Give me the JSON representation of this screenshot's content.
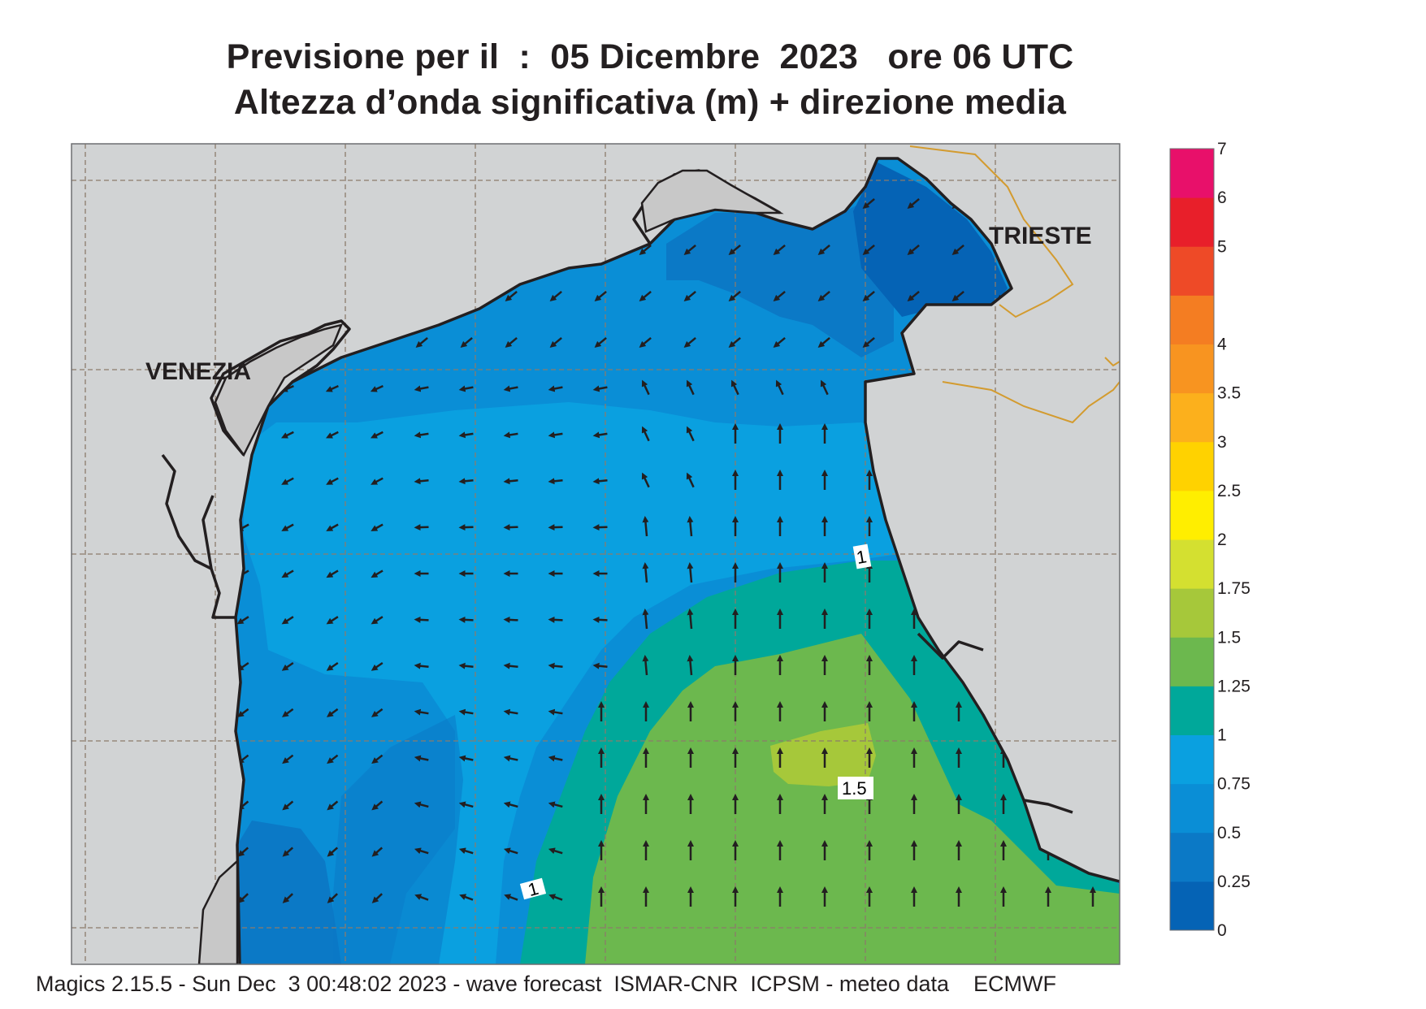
{
  "header": {
    "title_line1": "Previsione per il  :  05 Dicembre  2023   ore 06 UTC",
    "title_line2": "Altezza d’onda significativa (m) + direzione media"
  },
  "places": {
    "venezia": "VENEZIA",
    "trieste": "TRIESTE"
  },
  "contour_labels": [
    "1",
    "1",
    "1.5"
  ],
  "legend": {
    "levels": [
      "0",
      "0.25",
      "0.5",
      "0.75",
      "1",
      "1.25",
      "1.5",
      "1.75",
      "2",
      "2.5",
      "3",
      "3.5",
      "4",
      "4.5",
      "5",
      "6",
      "7"
    ],
    "visible_labels": [
      "0",
      "0.25",
      "0.5",
      "0.75",
      "1",
      "1.25",
      "1.5",
      "1.75",
      "2",
      "2.5",
      "3",
      "3.5",
      "4",
      "5",
      "6",
      "7"
    ],
    "colors": [
      "#0563b5",
      "#0b79c6",
      "#0a8ed6",
      "#0aa0e0",
      "#00a89a",
      "#6cb84e",
      "#a6c83a",
      "#d4e030",
      "#ffee00",
      "#ffd200",
      "#fcb01c",
      "#f89420",
      "#f47d22",
      "#ee4a27",
      "#e81f2a",
      "#e8106a"
    ]
  },
  "colors": {
    "land": "#d1d3d4",
    "land_lagoon": "#c8c8c8",
    "coast": "#231f20",
    "grid": "#8c7b6b",
    "border": "#d39b2f",
    "arrow": "#231f20"
  },
  "footer": {
    "text": "Magics 2.15.5 - Sun Dec  3 00:48:02 2023 - wave forecast  ISMAR-CNR  ICPSM - meteo data    ECMWF"
  }
}
